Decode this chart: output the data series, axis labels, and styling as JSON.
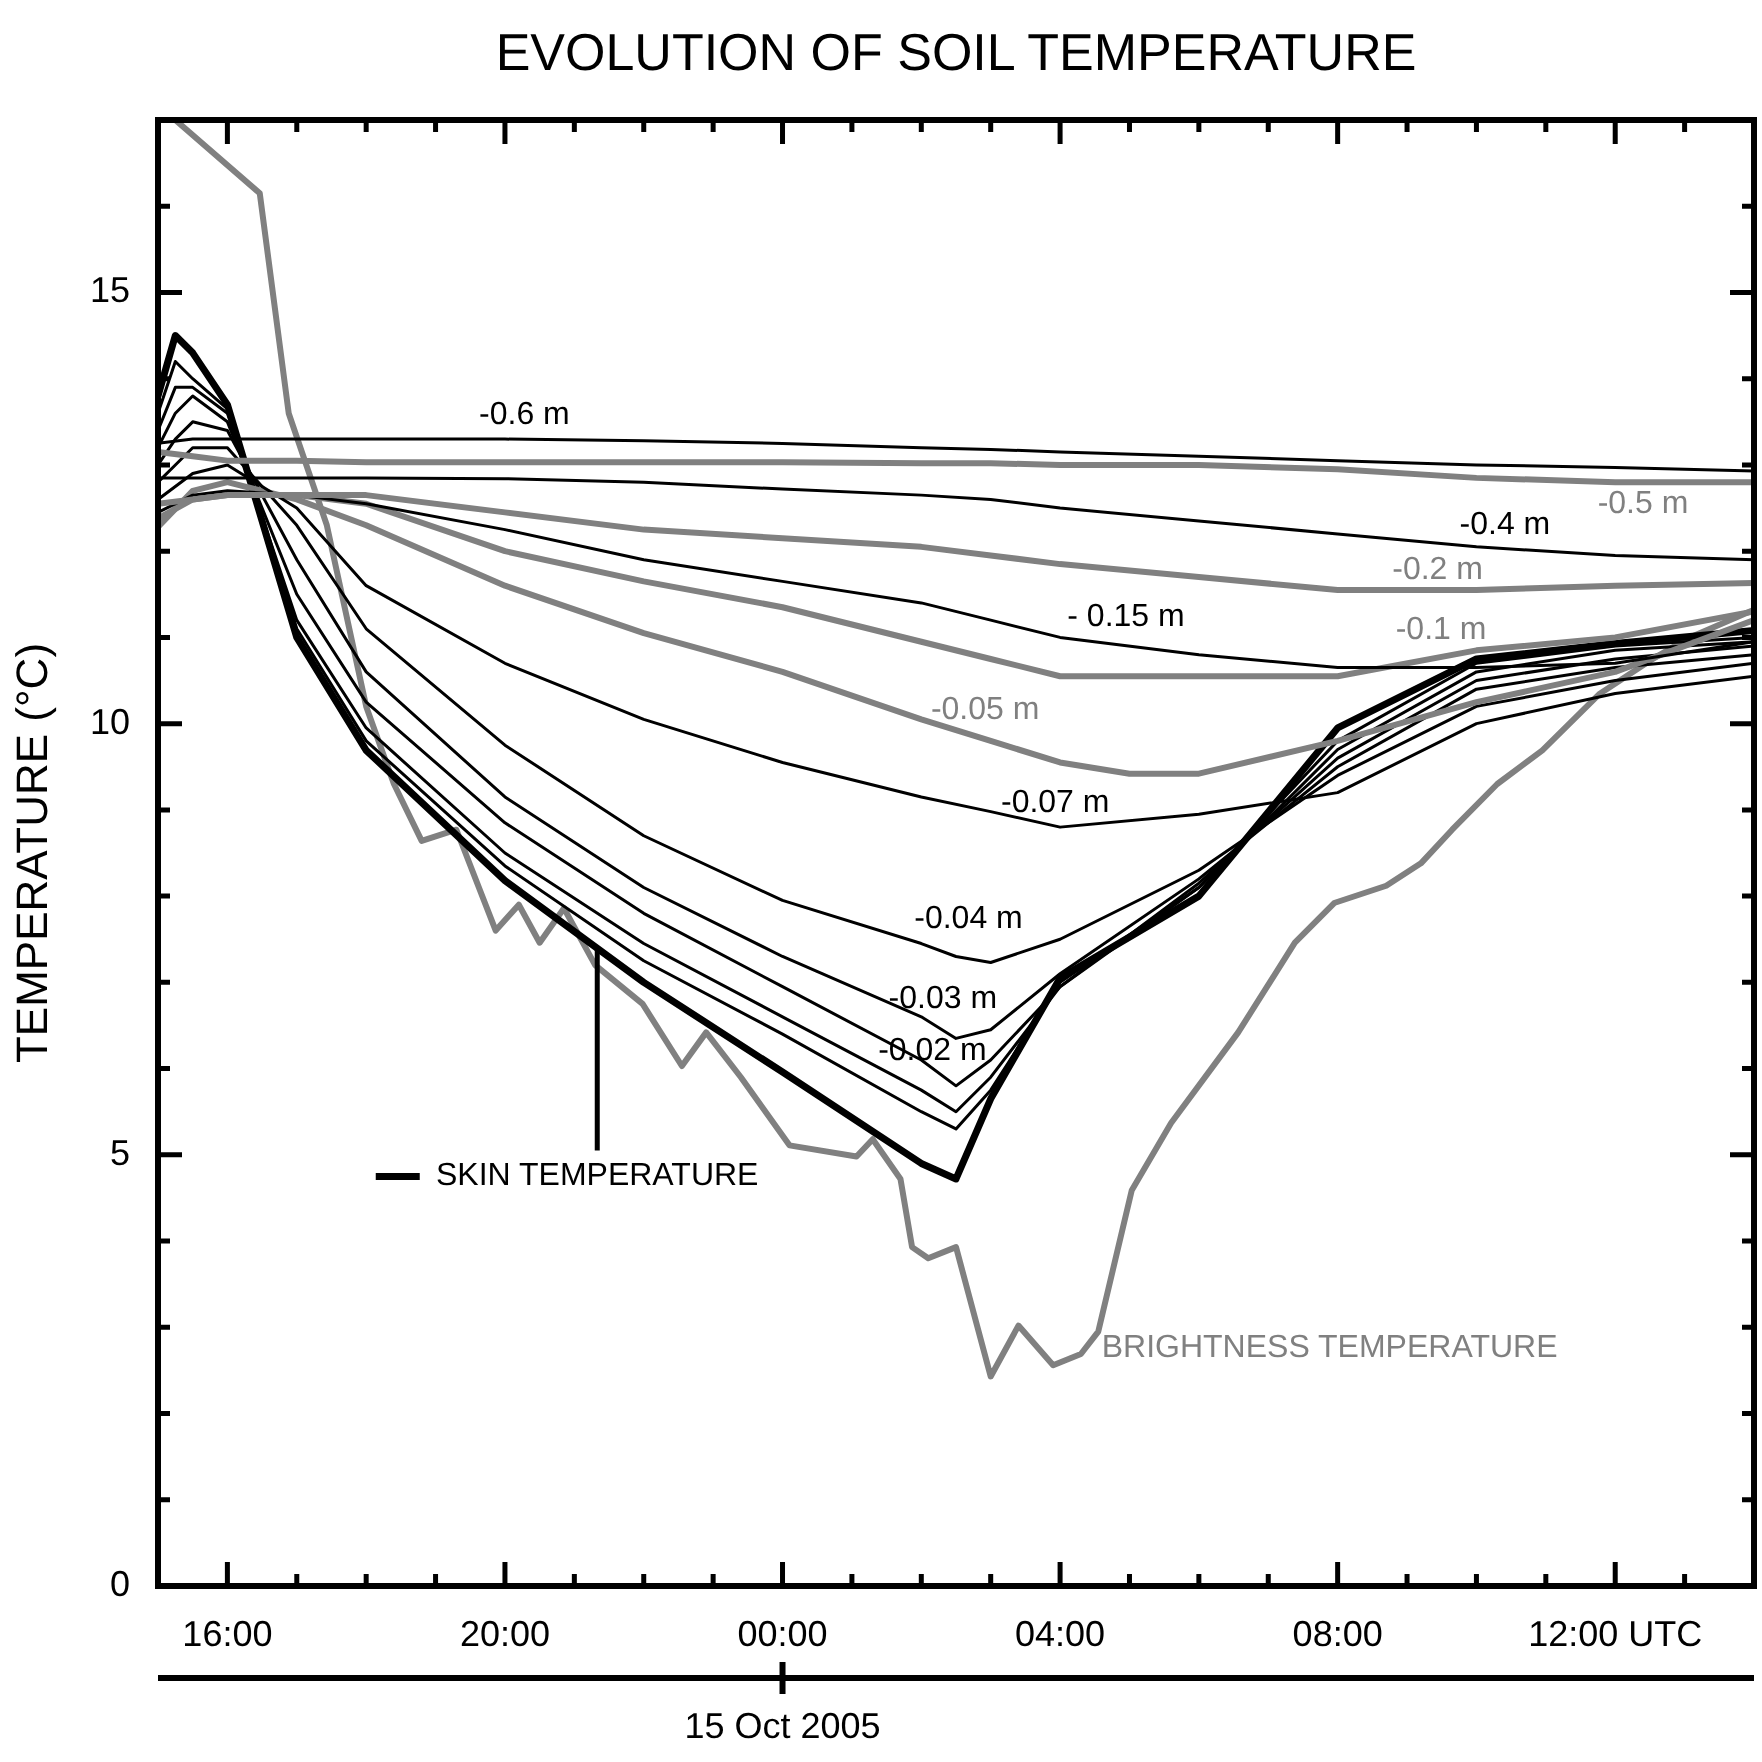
{
  "chart_data": {
    "type": "line",
    "title": "EVOLUTION OF SOIL TEMPERATURE",
    "ylabel": "TEMPERATURE (°C)",
    "xlabel": "15 Oct 2005",
    "xlim": [
      "2005-10-14T15:00",
      "2005-10-15T14:00"
    ],
    "ylim": [
      0,
      17
    ],
    "xticks": [
      {
        "value": "2005-10-14T16:00",
        "label": "16:00"
      },
      {
        "value": "2005-10-14T17:00",
        "label": null
      },
      {
        "value": "2005-10-14T18:00",
        "label": null
      },
      {
        "value": "2005-10-14T19:00",
        "label": null
      },
      {
        "value": "2005-10-14T20:00",
        "label": "20:00"
      },
      {
        "value": "2005-10-14T21:00",
        "label": null
      },
      {
        "value": "2005-10-14T22:00",
        "label": null
      },
      {
        "value": "2005-10-14T23:00",
        "label": null
      },
      {
        "value": "2005-10-15T00:00",
        "label": "00:00"
      },
      {
        "value": "2005-10-15T01:00",
        "label": null
      },
      {
        "value": "2005-10-15T02:00",
        "label": null
      },
      {
        "value": "2005-10-15T03:00",
        "label": null
      },
      {
        "value": "2005-10-15T04:00",
        "label": "04:00"
      },
      {
        "value": "2005-10-15T05:00",
        "label": null
      },
      {
        "value": "2005-10-15T06:00",
        "label": null
      },
      {
        "value": "2005-10-15T07:00",
        "label": null
      },
      {
        "value": "2005-10-15T08:00",
        "label": "08:00"
      },
      {
        "value": "2005-10-15T09:00",
        "label": null
      },
      {
        "value": "2005-10-15T10:00",
        "label": null
      },
      {
        "value": "2005-10-15T11:00",
        "label": null
      },
      {
        "value": "2005-10-15T12:00",
        "label": "12:00 UTC"
      },
      {
        "value": "2005-10-15T13:00",
        "label": null
      }
    ],
    "yticks": [
      0,
      {
        "value": 1,
        "label": null
      },
      {
        "value": 2,
        "label": null
      },
      {
        "value": 3,
        "label": null
      },
      {
        "value": 4,
        "label": null
      },
      5,
      {
        "value": 6,
        "label": null
      },
      {
        "value": 7,
        "label": null
      },
      {
        "value": 8,
        "label": null
      },
      {
        "value": 9,
        "label": null
      },
      10,
      {
        "value": 11,
        "label": null
      },
      {
        "value": 12,
        "label": null
      },
      {
        "value": 13,
        "label": null
      },
      {
        "value": 14,
        "label": null
      },
      15,
      {
        "value": 16,
        "label": null
      }
    ],
    "series": [
      {
        "name": "-0.6 m",
        "color": "#000000",
        "x": [
          "2005-10-14T15:00",
          "2005-10-14T15:30",
          "2005-10-14T16:00",
          "2005-10-14T17:00",
          "2005-10-14T18:00",
          "2005-10-14T20:00",
          "2005-10-14T22:00",
          "2005-10-15T00:00",
          "2005-10-15T02:00",
          "2005-10-15T03:00",
          "2005-10-15T04:00",
          "2005-10-15T06:00",
          "2005-10-15T08:00",
          "2005-10-15T10:00",
          "2005-10-15T12:00",
          "2005-10-15T14:00"
        ],
        "values": [
          13.25,
          13.3,
          13.3,
          13.3,
          13.3,
          13.3,
          13.28,
          13.25,
          13.2,
          13.18,
          13.15,
          13.1,
          13.05,
          13.0,
          12.97,
          12.93
        ]
      },
      {
        "name": "-0.5 m",
        "color": "#808080",
        "x": [
          "2005-10-14T15:00",
          "2005-10-14T15:30",
          "2005-10-14T16:00",
          "2005-10-14T17:00",
          "2005-10-14T18:00",
          "2005-10-14T20:00",
          "2005-10-14T22:00",
          "2005-10-15T00:00",
          "2005-10-15T02:00",
          "2005-10-15T03:00",
          "2005-10-15T04:00",
          "2005-10-15T06:00",
          "2005-10-15T08:00",
          "2005-10-15T10:00",
          "2005-10-15T12:00",
          "2005-10-15T14:00"
        ],
        "values": [
          13.15,
          13.1,
          13.05,
          13.05,
          13.03,
          13.03,
          13.03,
          13.03,
          13.02,
          13.02,
          13.0,
          13.0,
          12.95,
          12.85,
          12.8,
          12.8
        ]
      },
      {
        "name": "-0.4 m",
        "color": "#000000",
        "x": [
          "2005-10-14T15:00",
          "2005-10-14T15:30",
          "2005-10-14T16:00",
          "2005-10-14T17:00",
          "2005-10-14T18:00",
          "2005-10-14T20:00",
          "2005-10-14T22:00",
          "2005-10-15T00:00",
          "2005-10-15T02:00",
          "2005-10-15T03:00",
          "2005-10-15T04:00",
          "2005-10-15T06:00",
          "2005-10-15T08:00",
          "2005-10-15T10:00",
          "2005-10-15T12:00",
          "2005-10-15T14:00"
        ],
        "values": [
          12.85,
          12.85,
          12.85,
          12.85,
          12.85,
          12.84,
          12.8,
          12.72,
          12.65,
          12.6,
          12.5,
          12.35,
          12.2,
          12.05,
          11.95,
          11.9
        ]
      },
      {
        "name": "-0.2 m",
        "color": "#808080",
        "x": [
          "2005-10-14T15:00",
          "2005-10-14T15:30",
          "2005-10-14T16:00",
          "2005-10-14T17:00",
          "2005-10-14T18:00",
          "2005-10-14T20:00",
          "2005-10-14T22:00",
          "2005-10-15T00:00",
          "2005-10-15T02:00",
          "2005-10-15T03:00",
          "2005-10-15T04:00",
          "2005-10-15T06:00",
          "2005-10-15T08:00",
          "2005-10-15T10:00",
          "2005-10-15T12:00",
          "2005-10-15T14:00"
        ],
        "values": [
          12.55,
          12.6,
          12.65,
          12.65,
          12.65,
          12.45,
          12.25,
          12.15,
          12.05,
          11.95,
          11.85,
          11.7,
          11.55,
          11.55,
          11.6,
          11.63
        ]
      },
      {
        "name": "- 0.15 m",
        "color": "#000000",
        "x": [
          "2005-10-14T15:00",
          "2005-10-14T15:30",
          "2005-10-14T16:00",
          "2005-10-14T17:00",
          "2005-10-14T18:00",
          "2005-10-14T20:00",
          "2005-10-14T22:00",
          "2005-10-15T00:00",
          "2005-10-15T02:00",
          "2005-10-15T03:00",
          "2005-10-15T04:00",
          "2005-10-15T06:00",
          "2005-10-15T08:00",
          "2005-10-15T10:00",
          "2005-10-15T12:00",
          "2005-10-15T14:00"
        ],
        "values": [
          12.45,
          12.65,
          12.7,
          12.65,
          12.55,
          12.25,
          11.9,
          11.65,
          11.4,
          11.2,
          11.0,
          10.8,
          10.65,
          10.65,
          10.7,
          10.95
        ]
      },
      {
        "name": "-0.1 m",
        "color": "#808080",
        "x": [
          "2005-10-14T15:00",
          "2005-10-14T15:30",
          "2005-10-14T16:00",
          "2005-10-14T17:00",
          "2005-10-14T18:00",
          "2005-10-14T20:00",
          "2005-10-14T22:00",
          "2005-10-15T00:00",
          "2005-10-15T02:00",
          "2005-10-15T03:00",
          "2005-10-15T04:00",
          "2005-10-15T06:00",
          "2005-10-15T08:00",
          "2005-10-15T10:00",
          "2005-10-15T12:00",
          "2005-10-15T14:00"
        ],
        "values": [
          12.38,
          12.6,
          12.65,
          12.65,
          12.55,
          12.0,
          11.65,
          11.35,
          10.95,
          10.75,
          10.55,
          10.55,
          10.55,
          10.85,
          11.0,
          11.3
        ]
      },
      {
        "name": "-0.07 m",
        "color": "#000000",
        "x": [
          "2005-10-14T15:00",
          "2005-10-14T15:30",
          "2005-10-14T16:00",
          "2005-10-14T17:00",
          "2005-10-14T18:00",
          "2005-10-14T20:00",
          "2005-10-14T22:00",
          "2005-10-15T00:00",
          "2005-10-15T02:00",
          "2005-10-15T03:00",
          "2005-10-15T04:00",
          "2005-10-15T06:00",
          "2005-10-15T08:00",
          "2005-10-15T10:00",
          "2005-10-15T12:00",
          "2005-10-15T14:00"
        ],
        "values": [
          12.6,
          12.9,
          13.0,
          12.5,
          11.6,
          10.7,
          10.05,
          9.55,
          9.15,
          8.98,
          8.8,
          8.95,
          9.2,
          10.0,
          10.35,
          10.55
        ]
      },
      {
        "name": "-0.05 m",
        "color": "#808080",
        "x": [
          "2005-10-14T15:00",
          "2005-10-14T15:30",
          "2005-10-14T16:00",
          "2005-10-14T17:00",
          "2005-10-14T18:00",
          "2005-10-14T20:00",
          "2005-10-14T22:00",
          "2005-10-15T00:00",
          "2005-10-15T02:00",
          "2005-10-15T03:00",
          "2005-10-15T04:00",
          "2005-10-15T05:00",
          "2005-10-15T06:00",
          "2005-10-15T08:00",
          "2005-10-15T10:00",
          "2005-10-15T12:00",
          "2005-10-15T14:00"
        ],
        "values": [
          12.28,
          12.7,
          12.8,
          12.6,
          12.3,
          11.6,
          11.05,
          10.6,
          10.05,
          9.8,
          9.55,
          9.42,
          9.42,
          9.8,
          10.25,
          10.6,
          11.2
        ]
      },
      {
        "name": "-0.04 m",
        "color": "#000000",
        "x": [
          "2005-10-14T15:00",
          "2005-10-14T15:15",
          "2005-10-14T15:30",
          "2005-10-14T16:00",
          "2005-10-14T17:00",
          "2005-10-14T18:00",
          "2005-10-14T20:00",
          "2005-10-14T22:00",
          "2005-10-15T00:00",
          "2005-10-15T02:00",
          "2005-10-15T02:30",
          "2005-10-15T03:00",
          "2005-10-15T04:00",
          "2005-10-15T06:00",
          "2005-10-15T08:00",
          "2005-10-15T10:00",
          "2005-10-15T12:00",
          "2005-10-15T14:00"
        ],
        "values": [
          12.8,
          13.0,
          13.2,
          13.2,
          12.3,
          11.1,
          9.75,
          8.7,
          7.95,
          7.45,
          7.3,
          7.23,
          7.5,
          8.3,
          9.4,
          10.2,
          10.5,
          10.7
        ]
      },
      {
        "name": "-0.03 m",
        "color": "#000000",
        "x": [
          "2005-10-14T15:00",
          "2005-10-14T15:15",
          "2005-10-14T15:30",
          "2005-10-14T16:00",
          "2005-10-14T17:00",
          "2005-10-14T18:00",
          "2005-10-14T20:00",
          "2005-10-14T22:00",
          "2005-10-15T00:00",
          "2005-10-15T02:00",
          "2005-10-15T02:30",
          "2005-10-15T03:00",
          "2005-10-15T04:00",
          "2005-10-15T06:00",
          "2005-10-15T08:00",
          "2005-10-15T10:00",
          "2005-10-15T12:00",
          "2005-10-15T14:00"
        ],
        "values": [
          13.0,
          13.3,
          13.5,
          13.4,
          11.9,
          10.6,
          9.15,
          8.1,
          7.3,
          6.6,
          6.35,
          6.45,
          7.1,
          8.2,
          9.5,
          10.4,
          10.65,
          10.8
        ]
      },
      {
        "name": "-0.02 m",
        "color": "#000000",
        "x": [
          "2005-10-14T15:00",
          "2005-10-14T15:15",
          "2005-10-14T15:30",
          "2005-10-14T16:00",
          "2005-10-14T17:00",
          "2005-10-14T18:00",
          "2005-10-14T20:00",
          "2005-10-14T22:00",
          "2005-10-15T00:00",
          "2005-10-15T02:00",
          "2005-10-15T02:30",
          "2005-10-15T03:00",
          "2005-10-15T04:00",
          "2005-10-15T06:00",
          "2005-10-15T08:00",
          "2005-10-15T10:00",
          "2005-10-15T12:00",
          "2005-10-15T14:00"
        ],
        "values": [
          13.2,
          13.6,
          13.8,
          13.5,
          11.5,
          10.25,
          8.85,
          7.8,
          6.95,
          6.1,
          5.8,
          6.1,
          6.95,
          8.15,
          9.6,
          10.5,
          10.75,
          10.9
        ]
      },
      {
        "color": "#000000",
        "x": [
          "2005-10-14T15:00",
          "2005-10-14T15:15",
          "2005-10-14T15:30",
          "2005-10-14T16:00",
          "2005-10-14T17:00",
          "2005-10-14T18:00",
          "2005-10-14T20:00",
          "2005-10-14T22:00",
          "2005-10-15T00:00",
          "2005-10-15T02:00",
          "2005-10-15T02:30",
          "2005-10-15T03:00",
          "2005-10-15T04:00",
          "2005-10-15T06:00",
          "2005-10-15T08:00",
          "2005-10-15T10:00",
          "2005-10-15T12:00",
          "2005-10-15T14:00"
        ],
        "values": [
          13.4,
          13.9,
          13.9,
          13.6,
          11.2,
          9.95,
          8.5,
          7.45,
          6.6,
          5.75,
          5.5,
          5.9,
          6.95,
          8.1,
          9.7,
          10.6,
          10.85,
          10.95
        ]
      },
      {
        "color": "#000000",
        "x": [
          "2005-10-14T15:00",
          "2005-10-14T15:15",
          "2005-10-14T15:30",
          "2005-10-14T16:00",
          "2005-10-14T17:00",
          "2005-10-14T18:00",
          "2005-10-14T20:00",
          "2005-10-14T22:00",
          "2005-10-15T00:00",
          "2005-10-15T02:00",
          "2005-10-15T02:30",
          "2005-10-15T03:00",
          "2005-10-15T04:00",
          "2005-10-15T06:00",
          "2005-10-15T08:00",
          "2005-10-15T10:00",
          "2005-10-15T12:00",
          "2005-10-15T14:00"
        ],
        "values": [
          13.6,
          14.2,
          14.0,
          13.65,
          11.1,
          9.8,
          8.35,
          7.25,
          6.4,
          5.5,
          5.3,
          5.75,
          7.0,
          8.1,
          9.8,
          10.7,
          10.9,
          11.0
        ]
      },
      {
        "name": "SKIN TEMPERATURE",
        "color": "#000000",
        "x": [
          "2005-10-14T15:00",
          "2005-10-14T15:15",
          "2005-10-14T15:30",
          "2005-10-14T16:00",
          "2005-10-14T17:00",
          "2005-10-14T18:00",
          "2005-10-14T20:00",
          "2005-10-14T22:00",
          "2005-10-15T00:00",
          "2005-10-15T02:00",
          "2005-10-15T02:30",
          "2005-10-15T03:00",
          "2005-10-15T04:00",
          "2005-10-15T06:00",
          "2005-10-15T08:00",
          "2005-10-15T10:00",
          "2005-10-15T12:00",
          "2005-10-15T14:00"
        ],
        "values": [
          13.8,
          14.5,
          14.3,
          13.7,
          11.0,
          9.69,
          8.18,
          7.0,
          5.96,
          4.9,
          4.72,
          5.65,
          7.05,
          8.0,
          9.95,
          10.75,
          10.93,
          11.08
        ]
      },
      {
        "name": "BRIGHTNESS TEMPERATURE",
        "color": "#808080",
        "x": [
          "2005-10-14T15:15",
          "2005-10-14T16:28",
          "2005-10-14T16:53",
          "2005-10-14T17:26",
          "2005-10-14T18:00",
          "2005-10-14T18:24",
          "2005-10-14T18:48",
          "2005-10-14T19:18",
          "2005-10-14T19:52",
          "2005-10-14T20:12",
          "2005-10-14T20:30",
          "2005-10-14T20:51",
          "2005-10-14T21:18",
          "2005-10-14T21:59",
          "2005-10-14T22:33",
          "2005-10-14T22:54",
          "2005-10-14T23:24",
          "2005-10-15T00:06",
          "2005-10-15T01:04",
          "2005-10-15T01:18",
          "2005-10-15T01:42",
          "2005-10-15T01:52",
          "2005-10-15T02:06",
          "2005-10-15T02:30",
          "2005-10-15T03:00",
          "2005-10-15T03:24",
          "2005-10-15T03:54",
          "2005-10-15T04:18",
          "2005-10-15T04:33",
          "2005-10-15T05:02",
          "2005-10-15T05:36",
          "2005-10-15T06:34",
          "2005-10-15T07:23",
          "2005-10-15T07:57",
          "2005-10-15T08:42",
          "2005-10-15T09:12",
          "2005-10-15T09:39",
          "2005-10-15T10:18",
          "2005-10-15T10:57",
          "2005-10-15T11:46",
          "2005-10-15T12:30",
          "2005-10-15T13:03",
          "2005-10-15T14:00"
        ],
        "values": [
          17,
          16.15,
          13.6,
          12.3,
          10.2,
          9.3,
          8.64,
          8.77,
          7.6,
          7.9,
          7.46,
          7.86,
          7.2,
          6.75,
          6.03,
          6.42,
          5.9,
          5.11,
          4.98,
          5.18,
          4.72,
          3.93,
          3.8,
          3.93,
          2.43,
          3.02,
          2.56,
          2.69,
          2.95,
          4.59,
          5.37,
          6.42,
          7.46,
          7.92,
          8.12,
          8.38,
          8.77,
          9.3,
          9.69,
          10.34,
          10.73,
          10.99,
          11.32
        ]
      }
    ]
  }
}
